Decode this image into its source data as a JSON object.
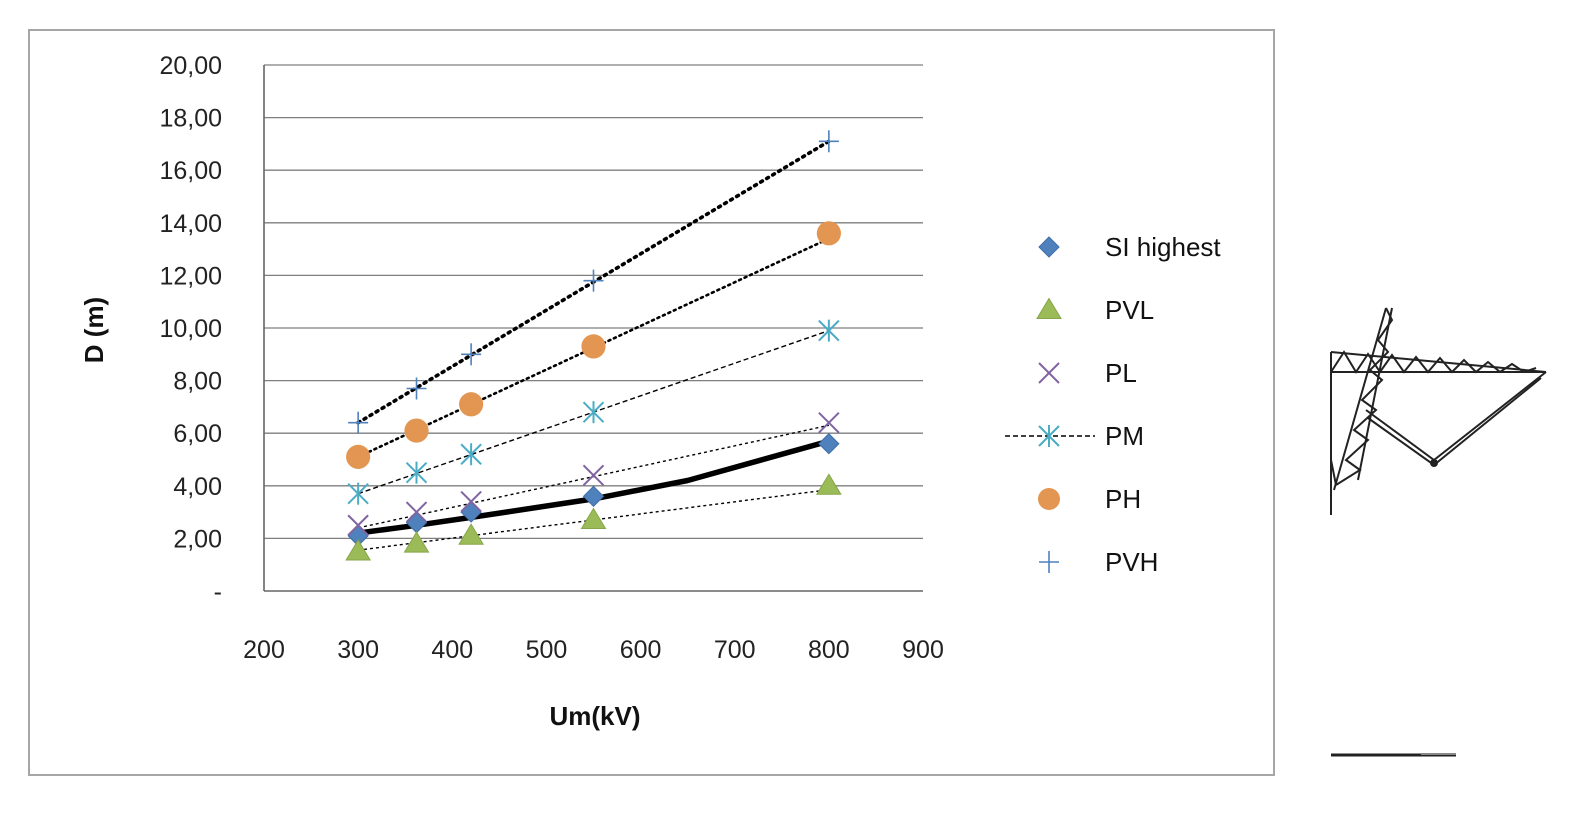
{
  "chart_data": {
    "type": "scatter",
    "title": "",
    "xlabel": "Um(kV)",
    "ylabel": "D (m)",
    "xlim": [
      200,
      900
    ],
    "ylim": [
      0,
      20
    ],
    "x_ticks": [
      "200",
      "300",
      "400",
      "500",
      "600",
      "700",
      "800",
      "900"
    ],
    "y_ticks": [
      "-",
      "2,00",
      "4,00",
      "6,00",
      "8,00",
      "10,00",
      "12,00",
      "14,00",
      "16,00",
      "18,00",
      "20,00"
    ],
    "grid": "horizontal",
    "legend_position": "right",
    "series": [
      {
        "name": "SI highest",
        "marker": "diamond",
        "color": "#4f81bd",
        "x": [
          300,
          362,
          420,
          550,
          800
        ],
        "y": [
          2.1,
          2.6,
          3.0,
          3.6,
          5.6
        ],
        "trendline": {
          "style": "solid-thick",
          "kind": "curve",
          "x": [
            300,
            362,
            420,
            550,
            650,
            800
          ],
          "y": [
            2.2,
            2.5,
            2.8,
            3.5,
            4.2,
            5.7
          ]
        }
      },
      {
        "name": "PVL",
        "marker": "triangle",
        "color": "#9bbb59",
        "x": [
          300,
          362,
          420,
          550,
          800
        ],
        "y": [
          1.5,
          1.8,
          2.1,
          2.7,
          4.0
        ],
        "trendline": {
          "style": "dotted",
          "kind": "linear",
          "x": [
            300,
            800
          ],
          "y": [
            1.55,
            3.85
          ]
        }
      },
      {
        "name": "PL",
        "marker": "x",
        "color": "#8064a2",
        "x": [
          300,
          362,
          420,
          550,
          800
        ],
        "y": [
          2.5,
          3.0,
          3.4,
          4.4,
          6.4
        ],
        "trendline": {
          "style": "dotted",
          "kind": "linear",
          "x": [
            300,
            800
          ],
          "y": [
            2.4,
            6.3
          ]
        }
      },
      {
        "name": "PM",
        "marker": "asterisk",
        "color": "#4bacc6",
        "x": [
          300,
          362,
          420,
          550,
          800
        ],
        "y": [
          3.7,
          4.5,
          5.2,
          6.8,
          9.9
        ],
        "trendline": {
          "style": "dashed",
          "kind": "linear",
          "x": [
            300,
            800
          ],
          "y": [
            3.7,
            9.9
          ]
        }
      },
      {
        "name": "PH",
        "marker": "circle",
        "color": "#e39651",
        "x": [
          300,
          362,
          420,
          550,
          800
        ],
        "y": [
          5.1,
          6.1,
          7.1,
          9.3,
          13.6
        ],
        "trendline": {
          "style": "dotted-medium",
          "kind": "linear",
          "x": [
            300,
            800
          ],
          "y": [
            5.1,
            13.4
          ]
        }
      },
      {
        "name": "PVH",
        "marker": "plus",
        "color": "#4f81bd",
        "x": [
          300,
          362,
          420,
          550,
          800
        ],
        "y": [
          6.4,
          7.7,
          9.0,
          11.8,
          17.1
        ],
        "trendline": {
          "style": "dotted-thick",
          "kind": "linear",
          "x": [
            300,
            800
          ],
          "y": [
            6.4,
            17.1
          ]
        }
      }
    ]
  },
  "side_figure": {
    "subject": "transmission-tower-drawing"
  }
}
